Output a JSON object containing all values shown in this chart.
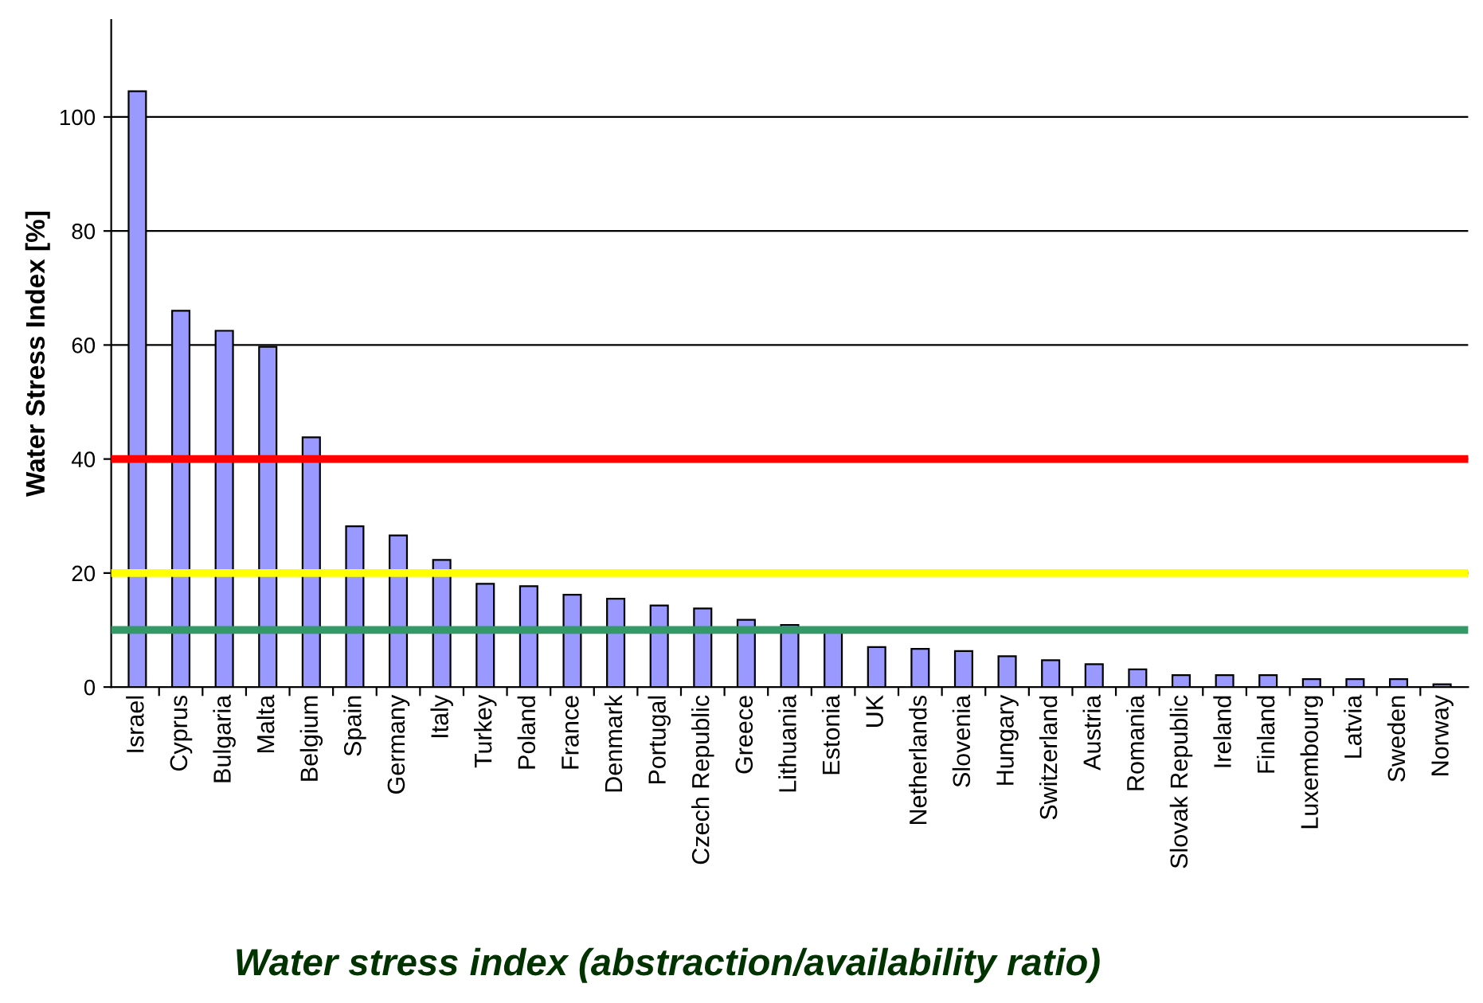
{
  "chart_data": {
    "type": "bar",
    "title": "Water stress index (abstraction/availability ratio)",
    "ylabel": "Water Stress Index [%]",
    "categories": [
      "Israel",
      "Cyprus",
      "Bulgaria",
      "Malta",
      "Belgium",
      "Spain",
      "Germany",
      "Italy",
      "Turkey",
      "Poland",
      "France",
      "Denmark",
      "Portugal",
      "Czech Republic",
      "Greece",
      "Lithuania",
      "Estonia",
      "UK",
      "Netherlands",
      "Slovenia",
      "Hungary",
      "Switzerland",
      "Austria",
      "Romania",
      "Slovak Republic",
      "Ireland",
      "Finland",
      "Luxembourg",
      "Latvia",
      "Sweden",
      "Norway"
    ],
    "values": [
      104.5,
      66,
      62.5,
      59.7,
      43.8,
      28.2,
      26.6,
      22.3,
      18.1,
      17.7,
      16.2,
      15.5,
      14.3,
      13.8,
      11.8,
      10.9,
      10,
      7.0,
      6.7,
      6.3,
      5.4,
      4.7,
      4.0,
      3.1,
      2.1,
      2.1,
      2.1,
      1.4,
      1.4,
      1.4,
      0.5
    ],
    "color": "#9999ff",
    "ylim": [
      0,
      117
    ],
    "yticks": [
      0,
      20,
      40,
      60,
      80,
      100
    ],
    "grid": "y",
    "ref_lines": [
      {
        "axis": "y",
        "value": 40,
        "color": "#ff0000"
      },
      {
        "axis": "y",
        "value": 20,
        "color": "#ffff00"
      },
      {
        "axis": "y",
        "value": 10,
        "color": "#339966"
      }
    ]
  }
}
